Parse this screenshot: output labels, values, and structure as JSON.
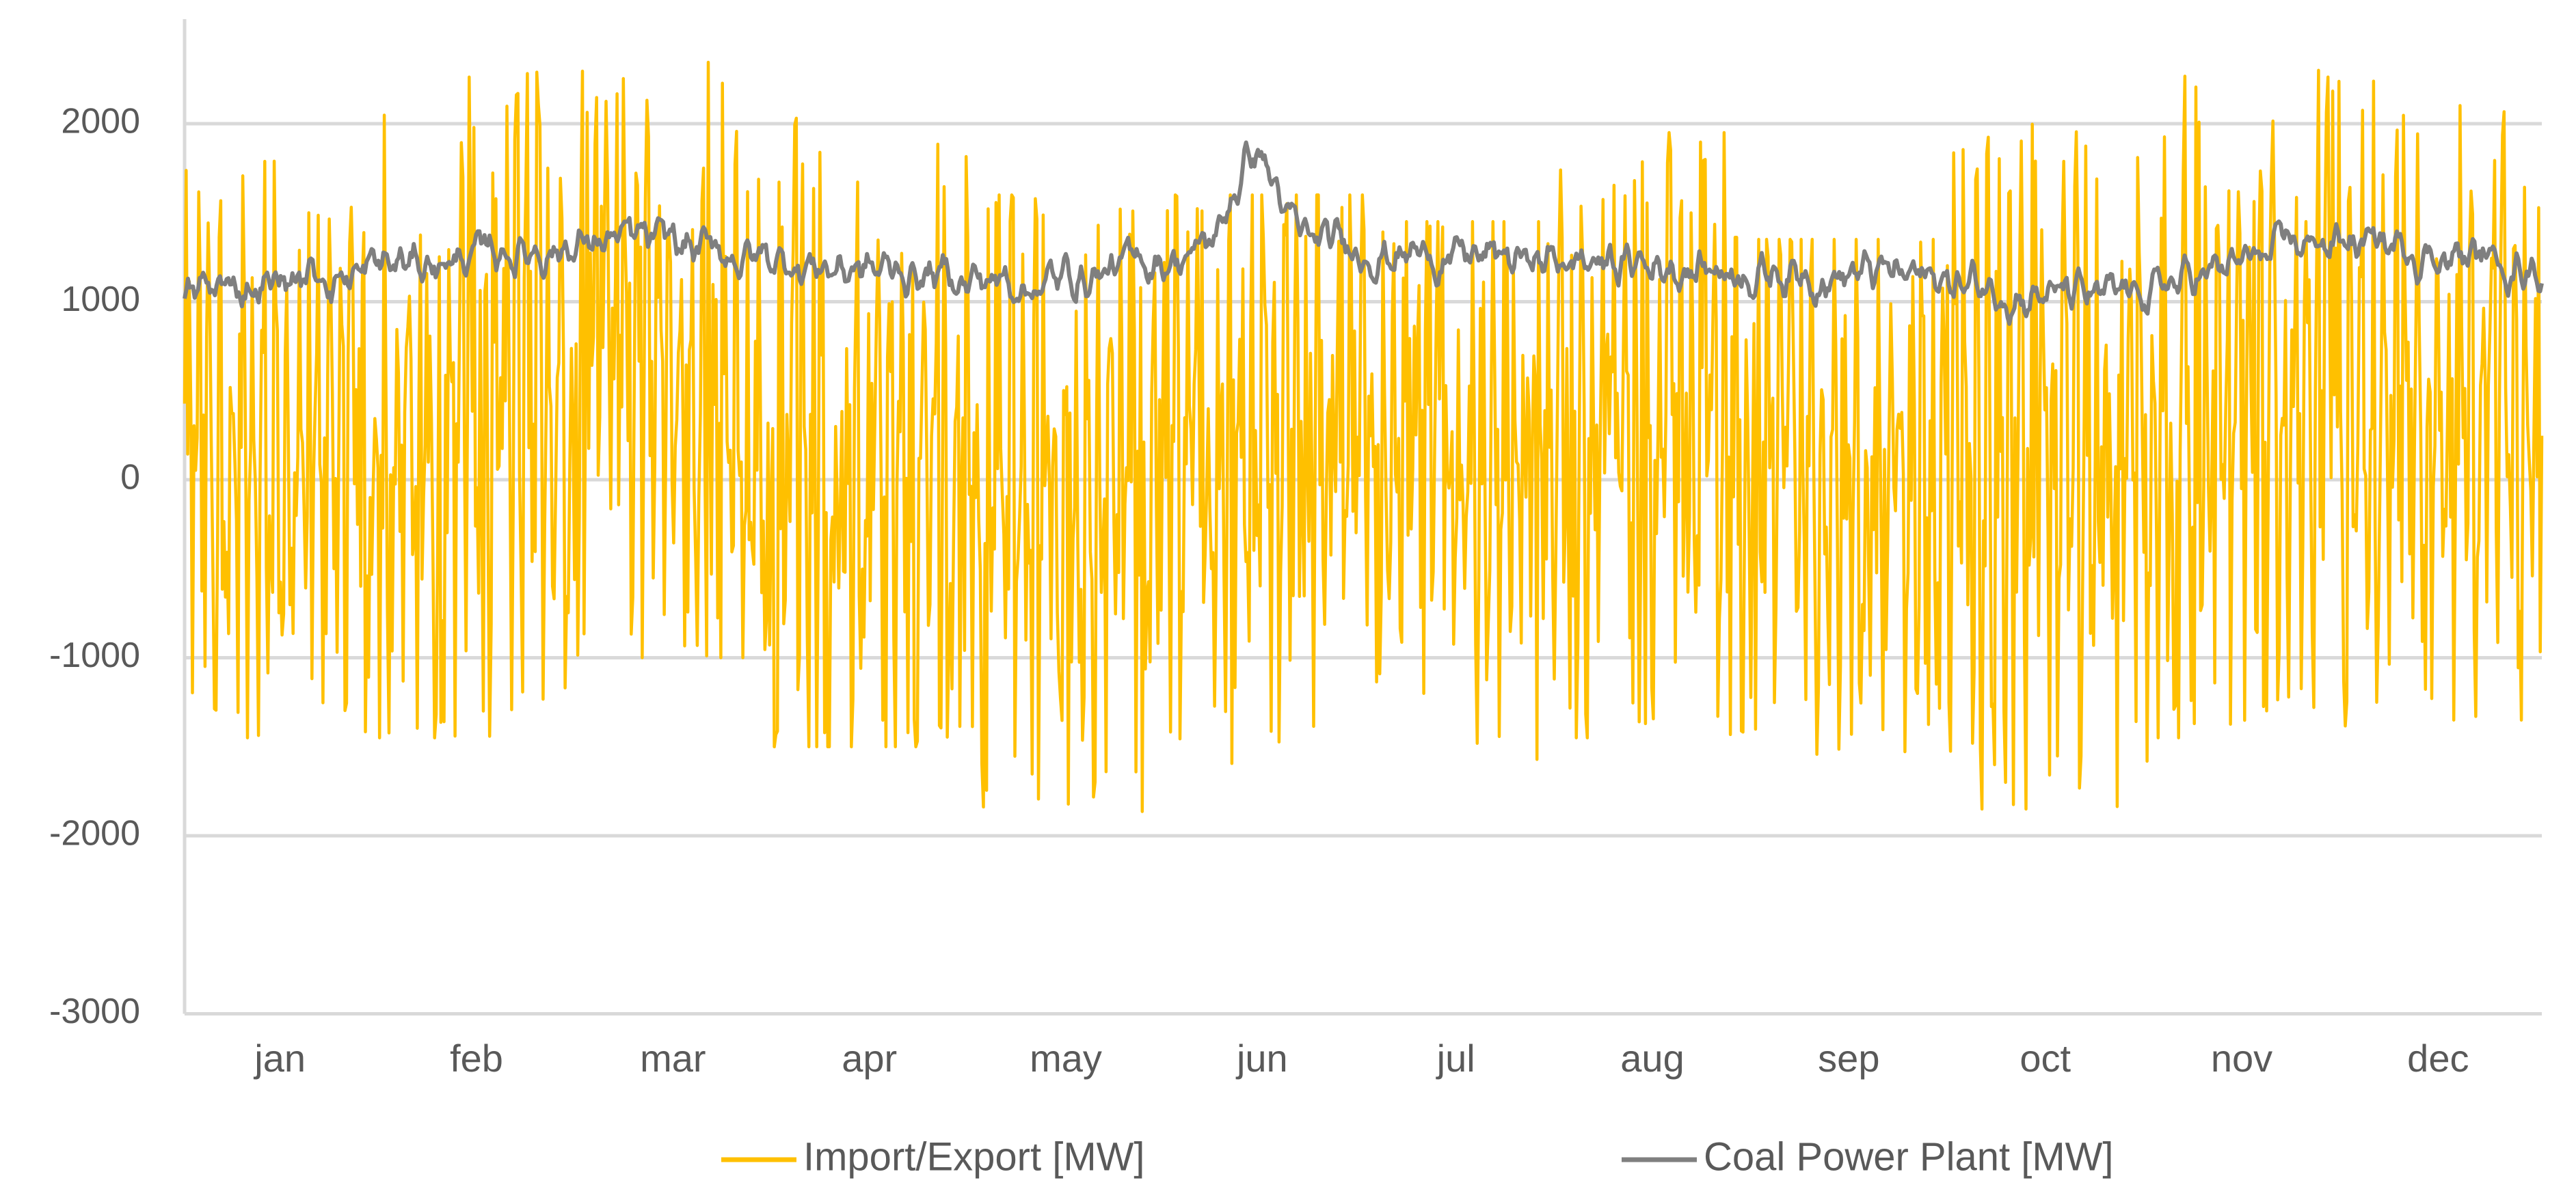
{
  "chart_data": {
    "type": "line",
    "title": "",
    "xlabel": "",
    "ylabel": "",
    "ylim": [
      -3000,
      2500
    ],
    "yticks": [
      2000,
      1000,
      0,
      -1000,
      -2000,
      -3000
    ],
    "ytick_labels": [
      "2000",
      "1000",
      "0",
      "-1000",
      "-2000",
      "-3000"
    ],
    "categories": [
      "jan",
      "feb",
      "mar",
      "apr",
      "may",
      "jun",
      "jul",
      "aug",
      "sep",
      "oct",
      "nov",
      "dec"
    ],
    "grid": true,
    "legend_position": "bottom",
    "series": [
      {
        "name": "Import/Export [MW]",
        "color": "#ffc000",
        "monthly_min": [
          -1450,
          -1450,
          -1000,
          -1500,
          -1900,
          -1600,
          -1700,
          -1450,
          -1750,
          -1850,
          -1450,
          -1350
        ],
        "monthly_max": [
          1900,
          2300,
          2400,
          2150,
          1600,
          1600,
          1450,
          1950,
          1350,
          2000,
          2300,
          2250
        ],
        "monthly_mean": [
          100,
          150,
          800,
          -150,
          0,
          200,
          150,
          400,
          -100,
          100,
          700,
          200
        ]
      },
      {
        "name": "Coal Power Plant [MW]",
        "color": "#7f7f7f",
        "monthly_values": [
          1050,
          1200,
          1350,
          1200,
          1100,
          1350,
          1250,
          1200,
          1150,
          1000,
          1350,
          1200
        ],
        "peak": 1900,
        "peak_month": "jun"
      }
    ]
  }
}
